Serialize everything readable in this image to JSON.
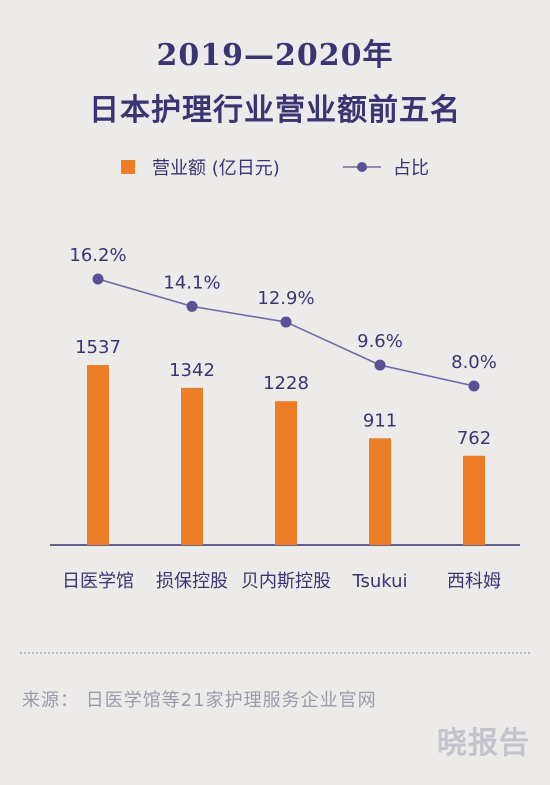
{
  "chart_data": {
    "type": "bar",
    "title_line1": "2019—2020年",
    "title_line2": "日本护理行业营业额前五名",
    "categories": [
      "日医学馆",
      "损保控股",
      "贝内斯控股",
      "Tsukui",
      "西科姆"
    ],
    "series": [
      {
        "name": "营业额 (亿日元)",
        "type": "bar",
        "values": [
          1537,
          1342,
          1228,
          911,
          762
        ],
        "labels": [
          "1537",
          "1342",
          "1228",
          "911",
          "762"
        ],
        "color": "#ee7d2a"
      },
      {
        "name": "占比",
        "type": "line",
        "values": [
          16.2,
          14.1,
          12.9,
          9.6,
          8.0
        ],
        "labels": [
          "16.2%",
          "14.1%",
          "12.9%",
          "9.6%",
          "8.0%"
        ],
        "color": "#7469a8"
      }
    ],
    "grid": false,
    "legend": "top-center"
  },
  "footer": {
    "source": "来源： 日医学馆等21家护理服务企业官网",
    "brand": "晓报告"
  },
  "colors": {
    "background": "#ecebea",
    "title": "#3a3572",
    "bar": "#ee7d2a",
    "line": "#7469a8",
    "text": "#3a3572"
  }
}
